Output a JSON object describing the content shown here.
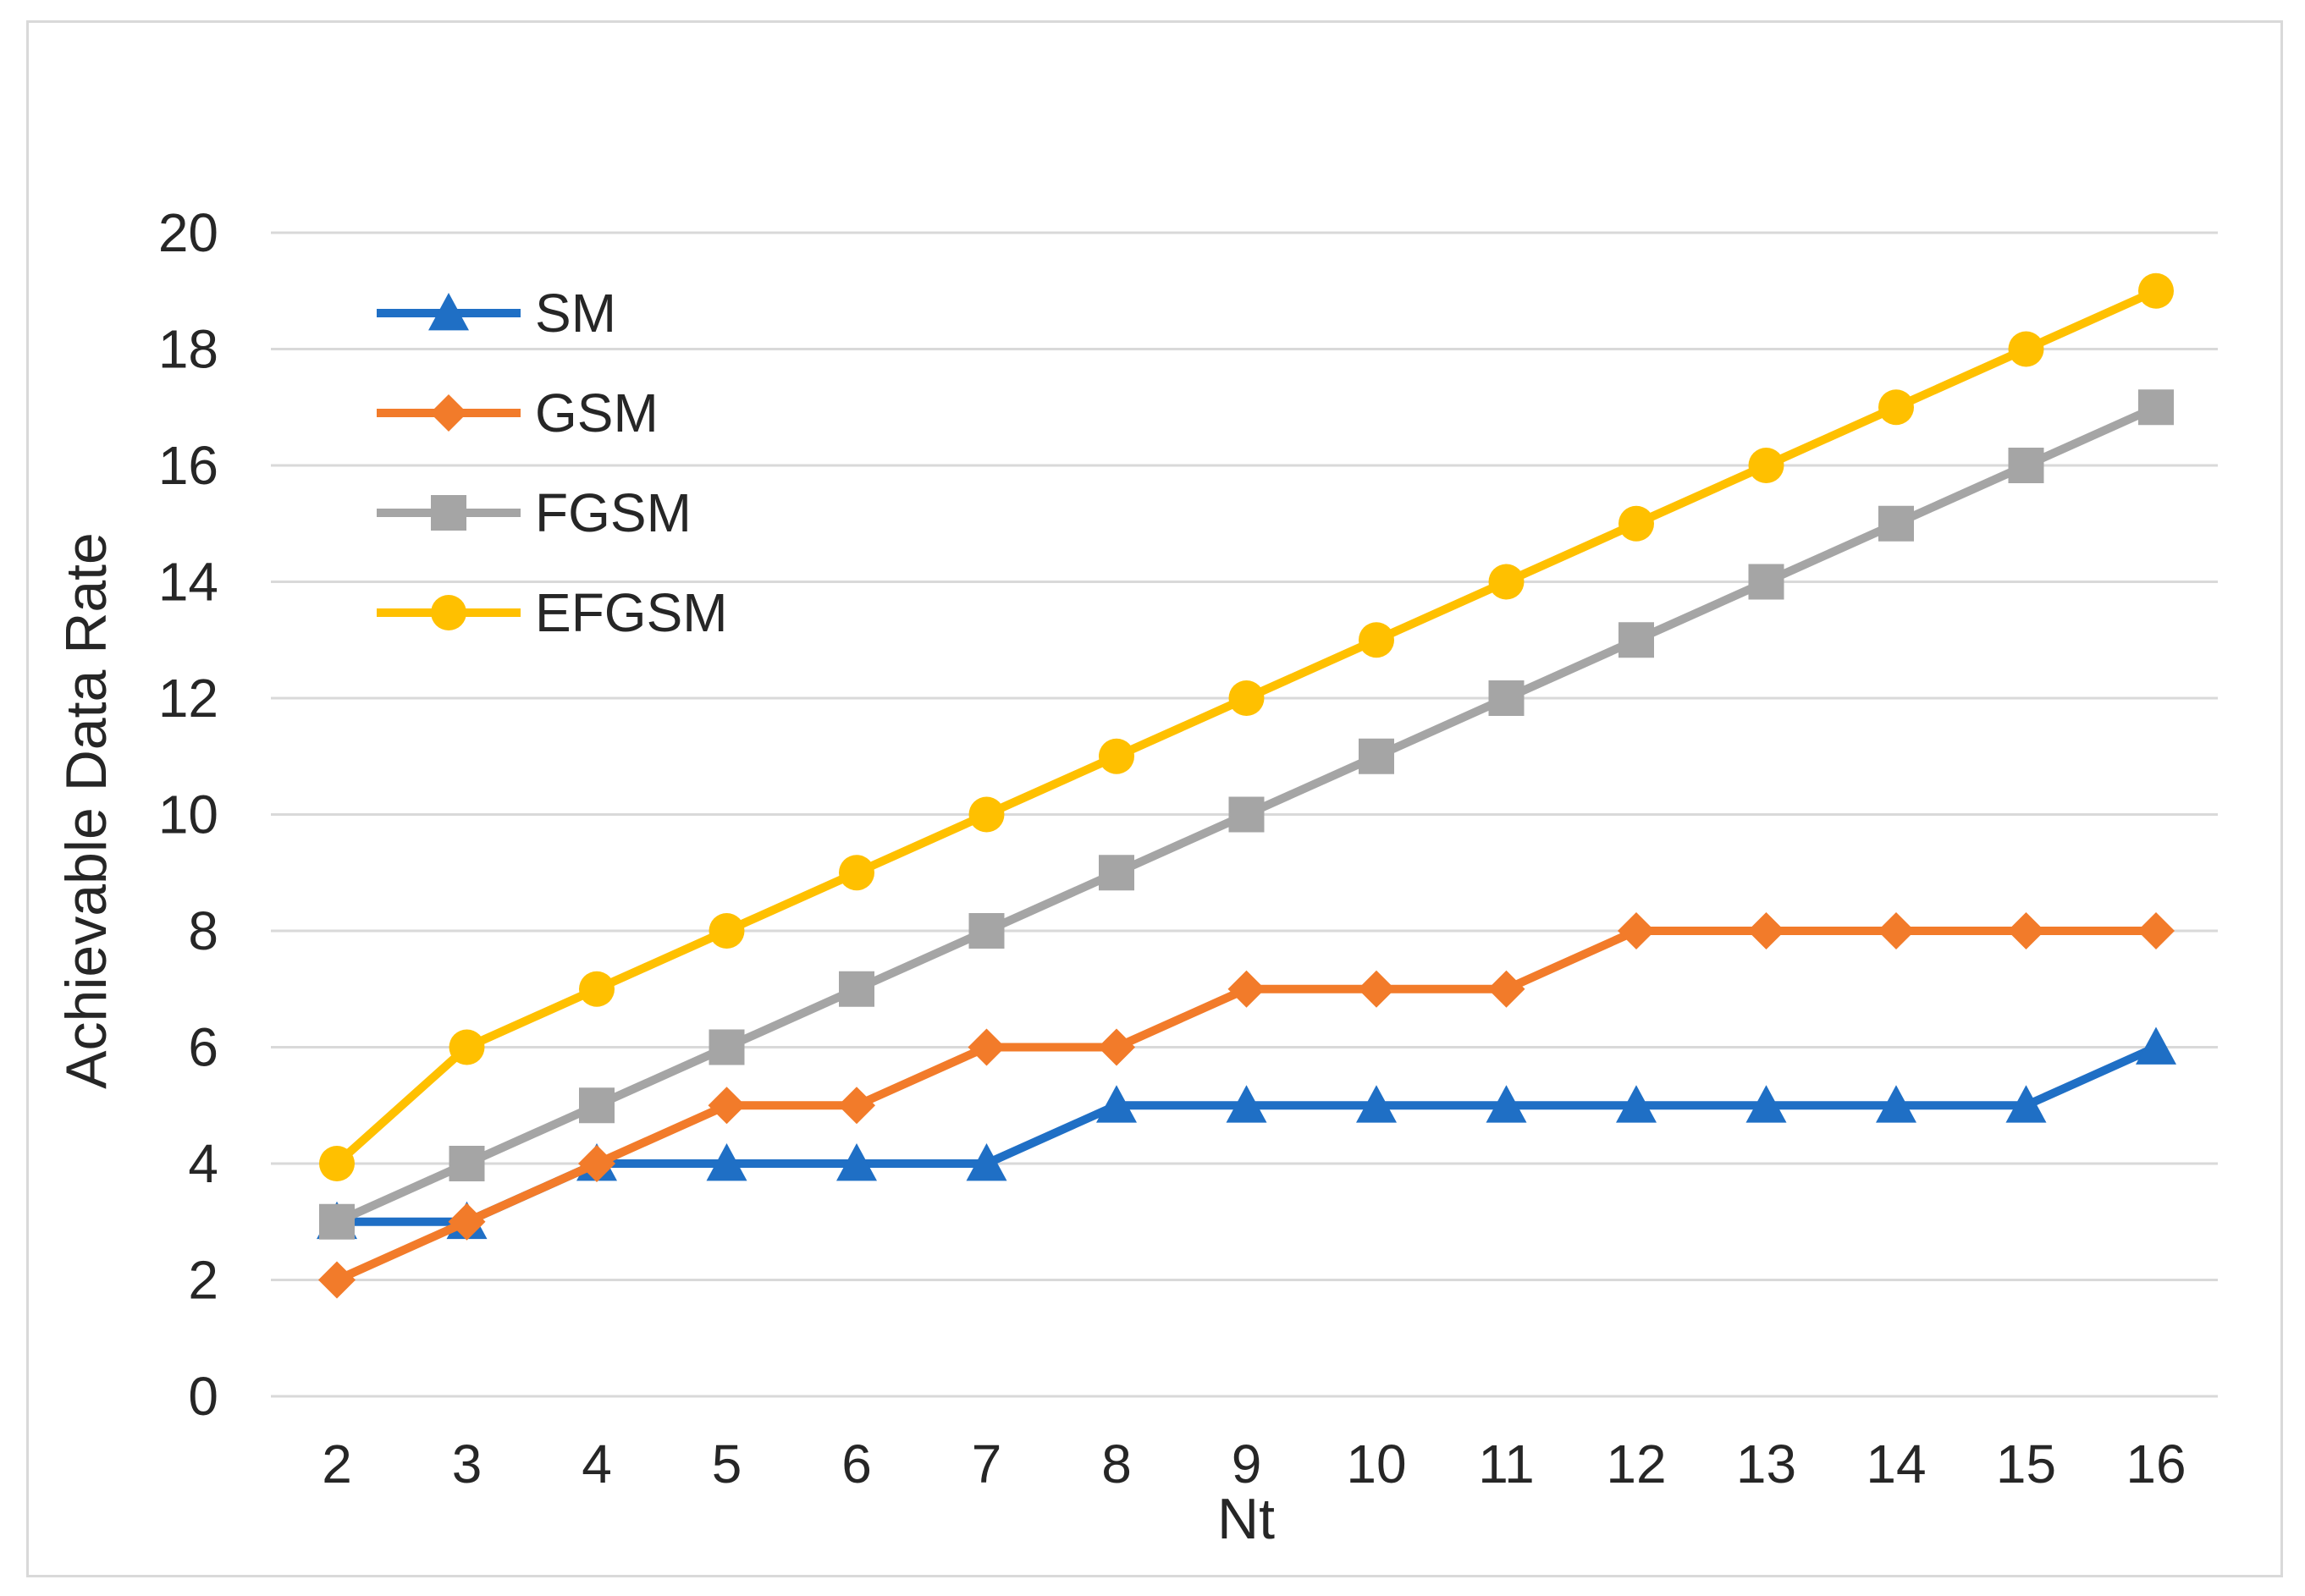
{
  "chart_data": {
    "type": "line",
    "title": "",
    "xlabel": "Nt",
    "ylabel": "Achievable Data Rate",
    "x": [
      2,
      3,
      4,
      5,
      6,
      7,
      8,
      9,
      10,
      11,
      12,
      13,
      14,
      15,
      16
    ],
    "x_tick_labels": [
      "2",
      "3",
      "4",
      "5",
      "6",
      "7",
      "8",
      "9",
      "10",
      "11",
      "12",
      "13",
      "14",
      "15",
      "16"
    ],
    "y_tick_labels": [
      "0",
      "2",
      "4",
      "6",
      "8",
      "10",
      "12",
      "14",
      "16",
      "18",
      "20"
    ],
    "ylim": [
      0,
      20
    ],
    "y_step": 2,
    "grid": true,
    "legend_position": "top-left",
    "series": [
      {
        "name": "SM",
        "color": "#1F6FC5",
        "marker": "triangle",
        "values": [
          3,
          3,
          4,
          4,
          4,
          4,
          5,
          5,
          5,
          5,
          5,
          5,
          5,
          5,
          6
        ]
      },
      {
        "name": "GSM",
        "color": "#F27B2A",
        "marker": "diamond",
        "values": [
          2,
          3,
          4,
          5,
          5,
          6,
          6,
          7,
          7,
          7,
          8,
          8,
          8,
          8,
          8
        ]
      },
      {
        "name": "FGSM",
        "color": "#A5A5A5",
        "marker": "square",
        "values": [
          3,
          4,
          5,
          6,
          7,
          8,
          9,
          10,
          11,
          12,
          13,
          14,
          15,
          16,
          17
        ]
      },
      {
        "name": "EFGSM",
        "color": "#FFC000",
        "marker": "circle",
        "values": [
          4,
          6,
          7,
          8,
          9,
          10,
          11,
          12,
          13,
          14,
          15,
          16,
          17,
          18,
          19
        ]
      }
    ]
  }
}
